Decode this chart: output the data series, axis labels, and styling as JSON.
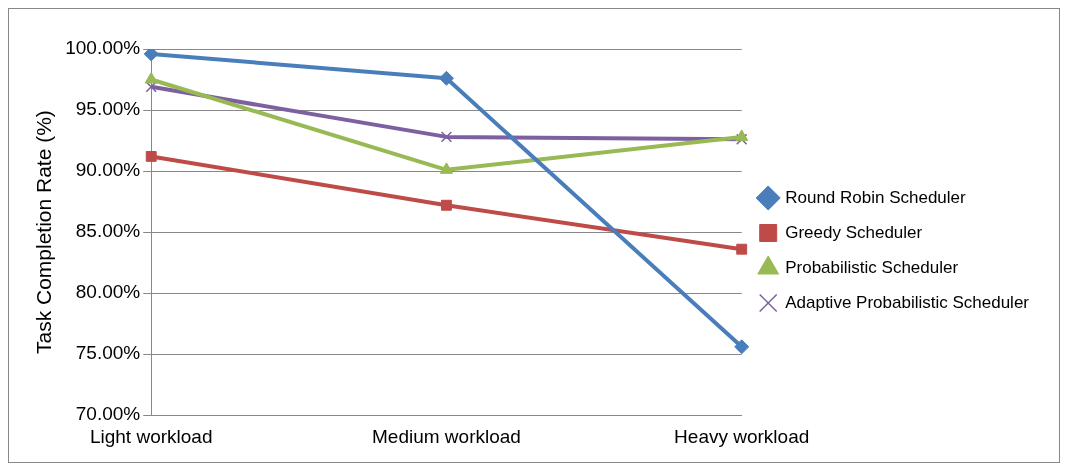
{
  "chart_data": {
    "type": "line",
    "ylabel": "Task Completion Rate (%)",
    "categories": [
      "Light workload",
      "Medium workload",
      "Heavy workload"
    ],
    "series": [
      {
        "name": "Round Robin Scheduler",
        "color": "#4a7ebb",
        "marker": "diamond",
        "values": [
          99.6,
          97.6,
          75.6
        ]
      },
      {
        "name": "Greedy Scheduler",
        "color": "#be4b48",
        "marker": "square",
        "values": [
          91.2,
          87.2,
          83.6
        ]
      },
      {
        "name": "Probabilistic Scheduler",
        "color": "#98b954",
        "marker": "triangle",
        "values": [
          97.5,
          90.1,
          92.8
        ]
      },
      {
        "name": "Adaptive Probabilistic Scheduler",
        "color": "#7d60a0",
        "marker": "cross",
        "values": [
          96.9,
          92.8,
          92.6
        ]
      }
    ],
    "ylim": [
      70,
      100
    ],
    "yticks": [
      {
        "value": 70,
        "label": "70.00%"
      },
      {
        "value": 75,
        "label": "75.00%"
      },
      {
        "value": 80,
        "label": "80.00%"
      },
      {
        "value": 85,
        "label": "85.00%"
      },
      {
        "value": 90,
        "label": "90.00%"
      },
      {
        "value": 95,
        "label": "95.00%"
      },
      {
        "value": 100,
        "label": "100.00%"
      }
    ],
    "grid": "y",
    "legend": "right",
    "line_style": "solid"
  }
}
